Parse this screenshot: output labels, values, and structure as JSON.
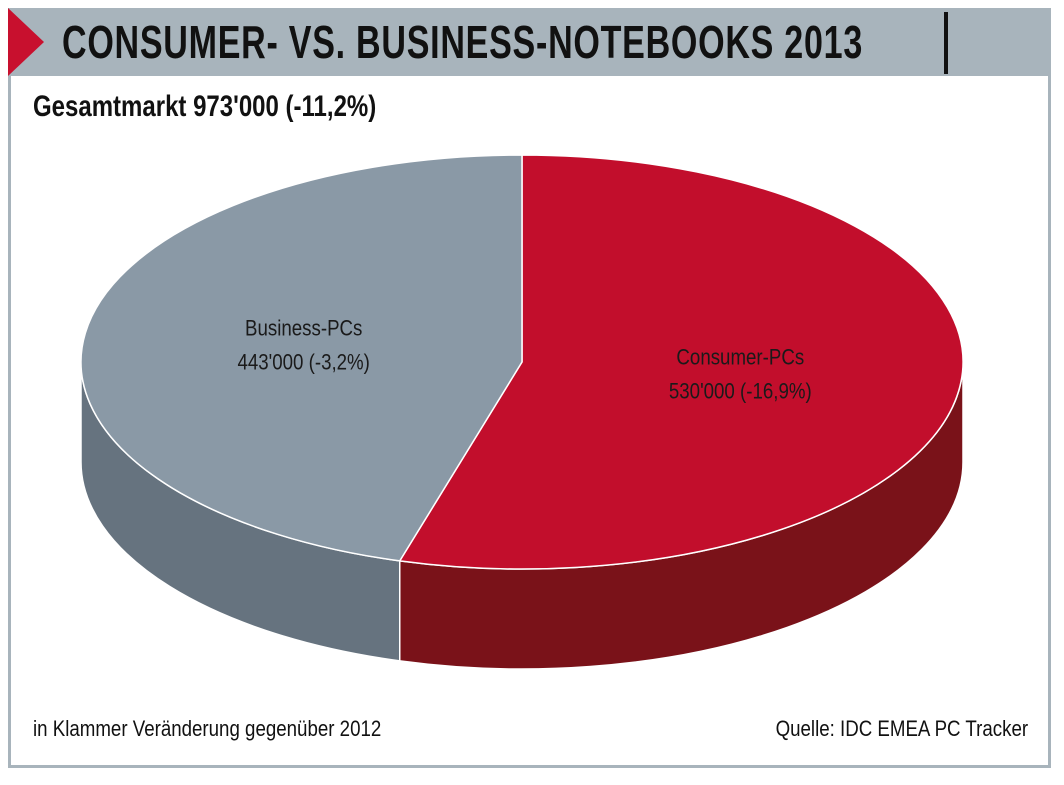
{
  "header": {
    "title": "CONSUMER- VS. BUSINESS-NOTEBOOKS 2013",
    "accent_color": "#c8102e",
    "band_color": "#a8b4bc"
  },
  "subtitle": "Gesamtmarkt 973'000 (-11,2%)",
  "footnote": {
    "left": "in Klammer Veränderung gegenüber 2012",
    "right": "Quelle: IDC EMEA PC Tracker"
  },
  "chart_data": {
    "type": "pie",
    "style": "3d",
    "title": "CONSUMER- VS. BUSINESS-NOTEBOOKS 2013",
    "subtitle": "Gesamtmarkt 973'000 (-11,2%)",
    "total": 973000,
    "total_change_pct": -11.2,
    "slices": [
      {
        "name": "Consumer-PCs",
        "value": 530000,
        "change_pct": -16.9,
        "value_label": "530'000 (-16,9%)",
        "color": "#c20e2c",
        "side_color": "#7a1219"
      },
      {
        "name": "Business-PCs",
        "value": 443000,
        "change_pct": -3.2,
        "value_label": "443'000 (-3,2%)",
        "color": "#8a99a6",
        "side_color": "#66737f"
      }
    ]
  }
}
